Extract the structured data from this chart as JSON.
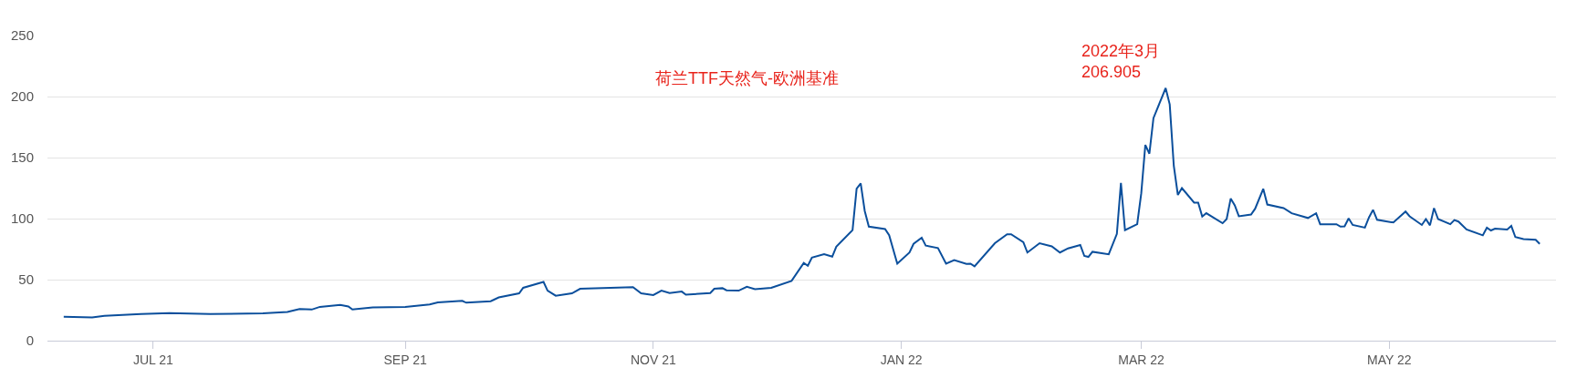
{
  "chart_data": {
    "type": "line",
    "title": "荷兰TTF天然气-欧洲基准",
    "x": [
      "2021-06-09",
      "2021-06-16",
      "2021-06-19",
      "2021-06-28",
      "2021-07-05",
      "2021-07-15",
      "2021-07-28",
      "2021-08-03",
      "2021-08-06",
      "2021-08-09",
      "2021-08-11",
      "2021-08-16",
      "2021-08-18",
      "2021-08-19",
      "2021-08-24",
      "2021-09-01",
      "2021-09-07",
      "2021-09-09",
      "2021-09-15",
      "2021-09-16",
      "2021-09-22",
      "2021-09-24",
      "2021-09-29",
      "2021-09-30",
      "2021-10-05",
      "2021-10-06",
      "2021-10-08",
      "2021-10-12",
      "2021-10-14",
      "2021-10-27",
      "2021-10-29",
      "2021-11-01",
      "2021-11-03",
      "2021-11-05",
      "2021-11-08",
      "2021-11-09",
      "2021-11-15",
      "2021-11-16",
      "2021-11-18",
      "2021-11-19",
      "2021-11-22",
      "2021-11-24",
      "2021-11-26",
      "2021-11-30",
      "2021-12-05",
      "2021-12-08",
      "2021-12-09",
      "2021-12-10",
      "2021-12-13",
      "2021-12-15",
      "2021-12-16",
      "2021-12-20",
      "2021-12-21",
      "2021-12-22",
      "2021-12-23",
      "2021-12-24",
      "2021-12-28",
      "2021-12-29",
      "2021-12-31",
      "2022-01-03",
      "2022-01-04",
      "2022-01-06",
      "2022-01-07",
      "2022-01-10",
      "2022-01-12",
      "2022-01-14",
      "2022-01-17",
      "2022-01-18",
      "2022-01-19",
      "2022-01-24",
      "2022-01-27",
      "2022-01-28",
      "2022-01-31",
      "2022-02-01",
      "2022-02-04",
      "2022-02-07",
      "2022-02-09",
      "2022-02-11",
      "2022-02-14",
      "2022-02-15",
      "2022-02-16",
      "2022-02-17",
      "2022-02-21",
      "2022-02-23",
      "2022-02-24",
      "2022-02-25",
      "2022-02-28",
      "2022-03-01",
      "2022-03-02",
      "2022-03-03",
      "2022-03-04",
      "2022-03-07",
      "2022-03-08",
      "2022-03-09",
      "2022-03-10",
      "2022-03-11",
      "2022-03-14",
      "2022-03-15",
      "2022-03-16",
      "2022-03-17",
      "2022-03-21",
      "2022-03-22",
      "2022-03-23",
      "2022-03-24",
      "2022-03-25",
      "2022-03-28",
      "2022-03-29",
      "2022-03-31",
      "2022-04-01",
      "2022-04-05",
      "2022-04-07",
      "2022-04-11",
      "2022-04-13",
      "2022-04-14",
      "2022-04-18",
      "2022-04-19",
      "2022-04-20",
      "2022-04-21",
      "2022-04-22",
      "2022-04-25",
      "2022-04-26",
      "2022-04-27",
      "2022-04-28",
      "2022-05-02",
      "2022-05-05",
      "2022-05-06",
      "2022-05-09",
      "2022-05-10",
      "2022-05-11",
      "2022-05-12",
      "2022-05-13",
      "2022-05-16",
      "2022-05-17",
      "2022-05-18",
      "2022-05-20",
      "2022-05-24",
      "2022-05-25",
      "2022-05-26",
      "2022-05-27",
      "2022-05-30",
      "2022-05-31",
      "2022-06-01",
      "2022-06-03",
      "2022-06-06",
      "2022-06-07"
    ],
    "series": [
      {
        "color": "#0b4f9c",
        "values": [
          19.5,
          19,
          20.4,
          21.8,
          22.6,
          21.8,
          22.4,
          23.5,
          26,
          25.5,
          27.7,
          29.2,
          28,
          25.5,
          27.2,
          27.7,
          29.7,
          31.4,
          32.6,
          31.1,
          32.3,
          35.4,
          38.8,
          43.3,
          48.1,
          41,
          36.8,
          38.8,
          42.5,
          43.9,
          38.8,
          37.4,
          41,
          39,
          40.2,
          37.7,
          39,
          42.5,
          43,
          41.3,
          41,
          44.2,
          42.2,
          43.3,
          49,
          63.7,
          61.4,
          68,
          70.8,
          68.8,
          77,
          90.6,
          124.6,
          128.8,
          106.2,
          93.4,
          91.4,
          86.4,
          63.1,
          72.2,
          79.3,
          84.4,
          77.9,
          75.9,
          63.1,
          66,
          62.9,
          63.1,
          60.9,
          79.8,
          87.2,
          87.2,
          80.7,
          72.2,
          79.8,
          77.3,
          72.2,
          75.6,
          78.4,
          69.4,
          68.6,
          72.8,
          70.8,
          87.5,
          129.2,
          90.6,
          95.4,
          120.8,
          160.3,
          153.2,
          182.3,
          206.905,
          193.6,
          143.3,
          119.4,
          125,
          113.1,
          113.1,
          101.6,
          104.4,
          96.2,
          99.6,
          116.5,
          110.9,
          101.9,
          103.3,
          108.1,
          124.4,
          111.5,
          108.6,
          104.4,
          100.5,
          104.4,
          95.4,
          95.4,
          93.4,
          93.7,
          100.2,
          94.8,
          92.6,
          101,
          107.2,
          99,
          96.8,
          105.8,
          101.9,
          94.8,
          99.6,
          94.5,
          108.6,
          99.6,
          95.4,
          98.8,
          97.6,
          91.1,
          86.3,
          92.6,
          90.3,
          91.7,
          91.1,
          94,
          84.9,
          83.2,
          82.7,
          79.3
        ]
      }
    ],
    "annotations": [
      {
        "text": "2022年3月\n206.905",
        "x": "2022-03-07",
        "y": 206.905
      }
    ],
    "xlim": [
      "2021-06-05",
      "2022-06-11"
    ],
    "xticks": [
      {
        "value": "2021-07-01",
        "label": "JUL 21"
      },
      {
        "value": "2021-09-01",
        "label": "SEP 21"
      },
      {
        "value": "2021-11-01",
        "label": "NOV 21"
      },
      {
        "value": "2022-01-01",
        "label": "JAN 22"
      },
      {
        "value": "2022-03-01",
        "label": "MAR 22"
      },
      {
        "value": "2022-05-01",
        "label": "MAY 22"
      }
    ],
    "ylim": [
      0,
      250
    ],
    "yticks": [
      0,
      50,
      100,
      150,
      200,
      250
    ],
    "grid": "y",
    "marker": "none",
    "line_style": "solid"
  }
}
